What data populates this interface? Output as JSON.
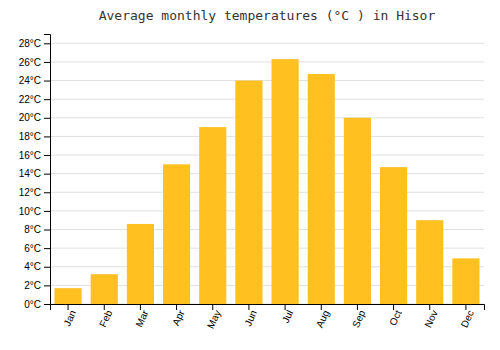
{
  "chart_data": {
    "type": "bar",
    "title": "Average monthly temperatures (°C ) in Hisor",
    "categories": [
      "Jan",
      "Feb",
      "Mar",
      "Apr",
      "May",
      "Jun",
      "Jul",
      "Aug",
      "Sep",
      "Oct",
      "Nov",
      "Dec"
    ],
    "values": [
      1.7,
      3.2,
      8.6,
      15.0,
      19.0,
      24.0,
      26.3,
      24.7,
      20.0,
      14.7,
      9.0,
      4.9
    ],
    "color": "#FFC020",
    "ylim": [
      0,
      29
    ],
    "yticks": [
      {
        "value": 0,
        "label": "0°C"
      },
      {
        "value": 2,
        "label": "2°C"
      },
      {
        "value": 4,
        "label": "4°C"
      },
      {
        "value": 6,
        "label": "6°C"
      },
      {
        "value": 8,
        "label": "8°C"
      },
      {
        "value": 10,
        "label": "10°C"
      },
      {
        "value": 12,
        "label": "12°C"
      },
      {
        "value": 14,
        "label": "14°C"
      },
      {
        "value": 16,
        "label": "16°C"
      },
      {
        "value": 18,
        "label": "18°C"
      },
      {
        "value": 20,
        "label": "20°C"
      },
      {
        "value": 22,
        "label": "22°C"
      },
      {
        "value": 24,
        "label": "24°C"
      },
      {
        "value": 26,
        "label": "26°C"
      },
      {
        "value": 28,
        "label": "28°C"
      }
    ],
    "grid": true
  }
}
